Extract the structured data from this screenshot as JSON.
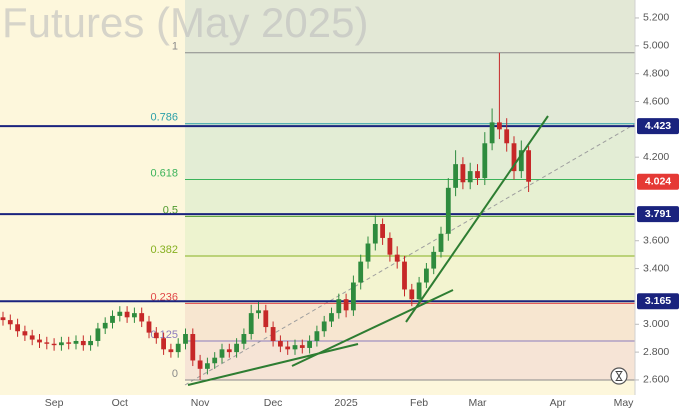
{
  "chart_data": {
    "type": "candlestick",
    "title": "Futures (May 2025)",
    "categories": [
      null,
      null,
      null,
      null,
      null,
      null,
      null,
      "Sep",
      null,
      null,
      null,
      null,
      null,
      null,
      null,
      null,
      "Oct",
      null,
      null,
      null,
      null,
      null,
      null,
      null,
      null,
      null,
      null,
      "Nov",
      null,
      null,
      null,
      null,
      null,
      null,
      null,
      null,
      null,
      "Dec",
      null,
      null,
      null,
      null,
      null,
      null,
      null,
      null,
      null,
      "2025",
      null,
      null,
      null,
      null,
      null,
      null,
      null,
      null,
      null,
      "Feb",
      null,
      null,
      null,
      null,
      null,
      null,
      null,
      "Mar",
      null,
      null,
      null,
      null,
      null,
      null,
      null,
      null,
      null,
      null,
      "Apr",
      null,
      null,
      null,
      null,
      null,
      null,
      null,
      null,
      "May",
      null
    ],
    "open": [
      3.05,
      3.03,
      3.0,
      2.95,
      2.92,
      2.89,
      2.87,
      2.86,
      2.85,
      2.87,
      2.86,
      2.88,
      2.85,
      2.88,
      2.97,
      3.01,
      3.06,
      3.09,
      3.05,
      3.08,
      3.02,
      2.94,
      2.9,
      2.82,
      2.8,
      2.86,
      2.93,
      2.74,
      2.68,
      2.72,
      2.76,
      2.82,
      2.8,
      2.86,
      2.93,
      3.08,
      3.1,
      2.98,
      2.88,
      2.84,
      2.82,
      2.85,
      2.83,
      2.88,
      2.95,
      3.02,
      3.08,
      3.18,
      3.1,
      3.3,
      3.45,
      3.58,
      3.72,
      3.62,
      3.5,
      3.45,
      3.25,
      3.18,
      3.3,
      3.4,
      3.52,
      3.65,
      3.98,
      4.15,
      4.02,
      4.1,
      4.05,
      4.3,
      4.45,
      4.4,
      4.3,
      4.1,
      4.25,
      null,
      null,
      null,
      null,
      null,
      null,
      null,
      null,
      null,
      null,
      null,
      null,
      null,
      null
    ],
    "high": [
      3.09,
      3.07,
      3.04,
      2.99,
      2.96,
      2.93,
      2.91,
      2.9,
      2.91,
      2.91,
      2.92,
      2.92,
      2.92,
      3.01,
      3.05,
      3.1,
      3.13,
      3.13,
      3.12,
      3.12,
      3.06,
      2.98,
      2.94,
      2.86,
      2.9,
      2.97,
      2.97,
      2.78,
      2.76,
      2.8,
      2.86,
      2.86,
      2.9,
      2.97,
      3.14,
      3.16,
      3.14,
      3.02,
      2.92,
      2.88,
      2.89,
      2.89,
      2.92,
      2.99,
      3.06,
      3.12,
      3.22,
      3.22,
      3.35,
      3.5,
      3.63,
      3.78,
      3.76,
      3.66,
      3.56,
      3.49,
      3.29,
      3.34,
      3.44,
      3.56,
      3.7,
      4.05,
      4.25,
      4.2,
      4.16,
      4.15,
      4.38,
      4.55,
      4.95,
      4.48,
      4.35,
      4.32,
      4.28,
      null,
      null,
      null,
      null,
      null,
      null,
      null,
      null,
      null,
      null,
      null,
      null,
      null,
      null
    ],
    "low": [
      2.99,
      2.96,
      2.91,
      2.88,
      2.85,
      2.83,
      2.82,
      2.81,
      2.81,
      2.82,
      2.82,
      2.81,
      2.81,
      2.84,
      2.93,
      2.97,
      3.02,
      3.01,
      3.01,
      2.98,
      2.9,
      2.86,
      2.78,
      2.76,
      2.76,
      2.82,
      2.7,
      2.6,
      2.64,
      2.68,
      2.72,
      2.76,
      2.76,
      2.82,
      2.89,
      3.04,
      2.94,
      2.84,
      2.8,
      2.78,
      2.78,
      2.79,
      2.79,
      2.84,
      2.91,
      2.98,
      3.04,
      3.05,
      3.06,
      3.25,
      3.4,
      3.53,
      3.57,
      3.45,
      3.4,
      3.2,
      3.13,
      3.14,
      3.26,
      3.36,
      3.48,
      3.6,
      3.92,
      3.97,
      3.97,
      4.0,
      4.0,
      4.25,
      4.33,
      4.24,
      4.04,
      4.05,
      3.95,
      null,
      null,
      null,
      null,
      null,
      null,
      null,
      null,
      null,
      null,
      null,
      null,
      null,
      null
    ],
    "close": [
      3.03,
      3.0,
      2.95,
      2.92,
      2.89,
      2.87,
      2.86,
      2.85,
      2.87,
      2.86,
      2.88,
      2.85,
      2.88,
      2.97,
      3.01,
      3.06,
      3.09,
      3.05,
      3.08,
      3.02,
      2.94,
      2.9,
      2.82,
      2.8,
      2.86,
      2.93,
      2.74,
      2.68,
      2.72,
      2.76,
      2.82,
      2.8,
      2.86,
      2.93,
      3.08,
      3.1,
      2.98,
      2.88,
      2.84,
      2.82,
      2.85,
      2.83,
      2.88,
      2.95,
      3.02,
      3.08,
      3.18,
      3.1,
      3.3,
      3.45,
      3.58,
      3.72,
      3.62,
      3.5,
      3.45,
      3.25,
      3.18,
      3.3,
      3.4,
      3.52,
      3.65,
      3.98,
      4.15,
      4.02,
      4.1,
      4.05,
      4.3,
      4.45,
      4.4,
      4.3,
      4.1,
      4.25,
      4.024,
      null,
      null,
      null,
      null,
      null,
      null,
      null,
      null,
      null,
      null,
      null,
      null,
      null,
      null
    ],
    "up_color": "#2e8b3e",
    "down_color": "#c62828",
    "ylim": [
      2.492,
      5.329
    ],
    "yticks": [
      {
        "value": 5.2,
        "label": "5.200"
      },
      {
        "value": 5.0,
        "label": "5.000"
      },
      {
        "value": 4.8,
        "label": "4.800"
      },
      {
        "value": 4.6,
        "label": "4.600"
      },
      {
        "value": 4.2,
        "label": "4.200"
      },
      {
        "value": 3.6,
        "label": "3.600"
      },
      {
        "value": 3.4,
        "label": "3.400"
      },
      {
        "value": 3.0,
        "label": "3.000"
      },
      {
        "value": 2.8,
        "label": "2.800"
      },
      {
        "value": 2.6,
        "label": "2.600"
      }
    ],
    "fib_fill_above": "#e3e8d6",
    "fib_levels": [
      {
        "label": "1",
        "value": 4.95,
        "color": "#8a8a8a",
        "fill": "#e2e9d7"
      },
      {
        "label": "0.786",
        "value": 4.44,
        "color": "#2a9fa8",
        "fill": "#e3edd5"
      },
      {
        "label": "0.618",
        "value": 4.04,
        "color": "#3bb35a",
        "fill": "#e7f0d2"
      },
      {
        "label": "0.5",
        "value": 3.775,
        "color": "#4f9a2e",
        "fill": "#edf3cf"
      },
      {
        "label": "0.382",
        "value": 3.49,
        "color": "#86b020",
        "fill": "#f3f4d0"
      },
      {
        "label": "0.236",
        "value": 3.15,
        "color": "#e04848",
        "fill": "#f7e6d0"
      },
      {
        "label": "0.125",
        "value": 2.88,
        "color": "#8b7bbd",
        "fill": "#f6e4d6"
      },
      {
        "label": "0",
        "value": 2.6,
        "color": "#8a8a8a",
        "fill": "#fdf7dc"
      }
    ],
    "levels": [
      {
        "value": 4.423,
        "label": "4.423"
      },
      {
        "value": 3.791,
        "label": "3.791"
      },
      {
        "value": 3.165,
        "label": "3.165"
      }
    ],
    "level_color": "#1a237e",
    "last_price": 4.024,
    "last_price_color": "#e53935"
  }
}
